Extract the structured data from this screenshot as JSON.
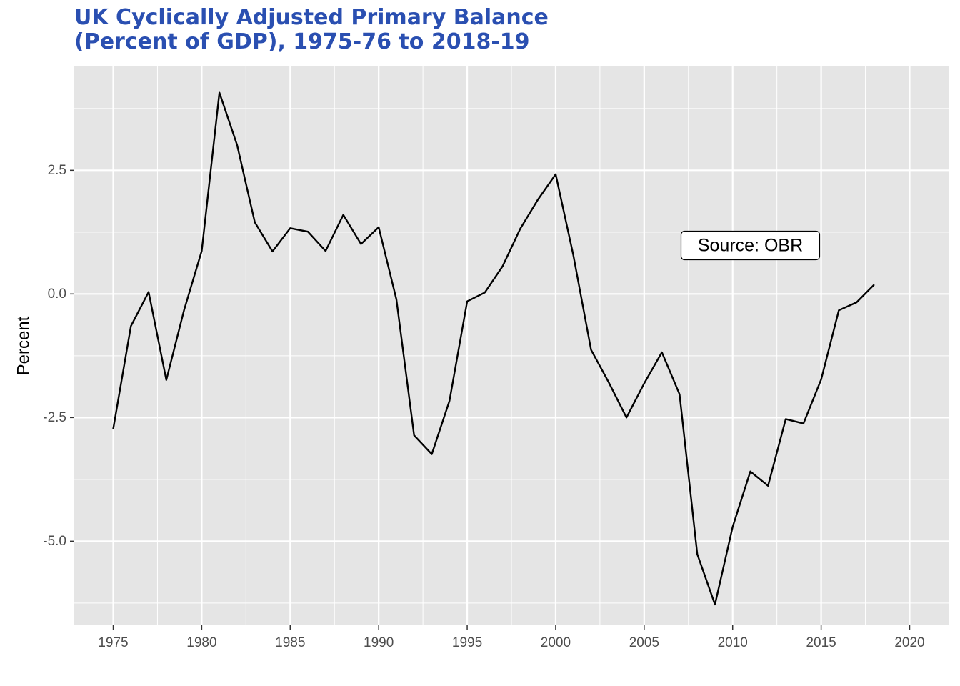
{
  "chart_data": {
    "type": "line",
    "title_lines": [
      "UK Cyclically Adjusted Primary Balance",
      "(Percent of GDP), 1975-76 to 2018-19"
    ],
    "xlabel": "",
    "ylabel": "Percent",
    "xlim": [
      1972.8,
      2022.2
    ],
    "ylim": [
      -6.7,
      4.6
    ],
    "x_ticks": [
      1975,
      1980,
      1985,
      1990,
      1995,
      2000,
      2005,
      2010,
      2015,
      2020
    ],
    "y_ticks": [
      -5.0,
      -2.5,
      0.0,
      2.5
    ],
    "y_tick_labels": [
      "-5.0",
      "-2.5",
      "0.0",
      "2.5"
    ],
    "grid": true,
    "background": "#e5e5e5",
    "line_color": "#000000",
    "annotation": {
      "text": "Source: OBR",
      "x": 2011,
      "y": 0.98
    },
    "series": [
      {
        "x": [
          1975,
          1976,
          1977,
          1978,
          1979,
          1980,
          1981,
          1982,
          1983,
          1984,
          1985,
          1986,
          1987,
          1988,
          1989,
          1990,
          1991,
          1992,
          1993,
          1994,
          1995,
          1996,
          1997,
          1998,
          1999,
          2000,
          2001,
          2002,
          2003,
          2004,
          2005,
          2006,
          2007,
          2008,
          2009,
          2010,
          2011,
          2012,
          2013,
          2014,
          2015,
          2016,
          2017,
          2018
        ],
        "values": [
          -2.73,
          -0.65,
          0.04,
          -1.74,
          -0.33,
          0.87,
          4.07,
          3.01,
          1.45,
          0.86,
          1.33,
          1.26,
          0.87,
          1.6,
          1.01,
          1.35,
          -0.11,
          -2.86,
          -3.24,
          -2.16,
          -0.15,
          0.03,
          0.56,
          1.32,
          1.91,
          2.42,
          0.78,
          -1.13,
          -1.79,
          -2.5,
          -1.81,
          -1.18,
          -2.03,
          -5.26,
          -6.28,
          -4.71,
          -3.59,
          -3.88,
          -2.53,
          -2.62,
          -1.73,
          -0.33,
          -0.17,
          0.19
        ]
      }
    ]
  }
}
